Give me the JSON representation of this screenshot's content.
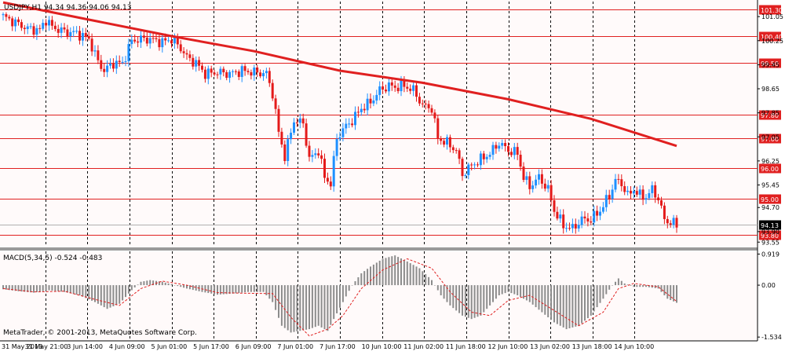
{
  "window": {
    "header": "USDJPY,H1  94.34 94.36 94.06 94.13",
    "copyright": "MetaTrader, © 2001-2013, MetaQuotes Software Corp.",
    "macd_header": "MACD(5,34,5) -0.524 -0.483"
  },
  "colors": {
    "background": "#fffafa",
    "up_candle": "#1e90ff",
    "down_candle": "#e41a1a",
    "sma": "#e02020",
    "level_line": "#e02020",
    "grid": "#000000",
    "macd_bar": "#8c8c8c",
    "signal": "#e02020"
  },
  "chart_data": [
    {
      "type": "candlestick",
      "symbol": "USDJPY",
      "timeframe": "H1",
      "title": "USDJPY,H1  94.34 94.36 94.06 94.13",
      "ylim": [
        93.4,
        101.55
      ],
      "price_ticks": [
        "101.05",
        "100.25",
        "99.45",
        "98.65",
        "97.85",
        "97.05",
        "96.25",
        "95.45",
        "94.70",
        "93.90",
        "93.55"
      ],
      "horizontal_levels": [
        {
          "value": 101.3,
          "label": "101.30"
        },
        {
          "value": 100.4,
          "label": "100.40"
        },
        {
          "value": 99.5,
          "label": "99.50"
        },
        {
          "value": 97.8,
          "label": "97.80"
        },
        {
          "value": 97.0,
          "label": "97.00"
        },
        {
          "value": 96.0,
          "label": "96.00"
        },
        {
          "value": 95.0,
          "label": "95.00"
        },
        {
          "value": 93.8,
          "label": "93.80"
        }
      ],
      "current_price": "94.13",
      "close_path": [
        [
          0,
          101.05
        ],
        [
          4,
          100.85
        ],
        [
          8,
          100.65
        ],
        [
          12,
          100.6
        ],
        [
          14,
          100.95
        ],
        [
          16,
          100.7
        ],
        [
          20,
          100.55
        ],
        [
          24,
          100.5
        ],
        [
          28,
          100.3
        ],
        [
          31,
          99.55
        ],
        [
          33,
          99.25
        ],
        [
          36,
          99.5
        ],
        [
          39,
          99.5
        ],
        [
          42,
          100.25
        ],
        [
          45,
          100.3
        ],
        [
          48,
          100.3
        ],
        [
          52,
          100.2
        ],
        [
          55,
          100.3
        ],
        [
          58,
          100.0
        ],
        [
          60,
          99.7
        ],
        [
          63,
          99.5
        ],
        [
          66,
          99.15
        ],
        [
          70,
          99.2
        ],
        [
          74,
          99.15
        ],
        [
          78,
          99.25
        ],
        [
          82,
          99.2
        ],
        [
          86,
          99.15
        ],
        [
          88,
          98.5
        ],
        [
          90,
          97.2
        ],
        [
          92,
          96.4
        ],
        [
          95,
          97.6
        ],
        [
          98,
          97.5
        ],
        [
          100,
          96.3
        ],
        [
          103,
          96.6
        ],
        [
          105,
          95.7
        ],
        [
          107,
          95.5
        ],
        [
          109,
          97.0
        ],
        [
          111,
          97.3
        ],
        [
          114,
          97.6
        ],
        [
          117,
          98.0
        ],
        [
          120,
          98.2
        ],
        [
          123,
          98.6
        ],
        [
          126,
          98.75
        ],
        [
          128,
          98.7
        ],
        [
          131,
          98.75
        ],
        [
          134,
          98.6
        ],
        [
          137,
          98.1
        ],
        [
          140,
          98.0
        ],
        [
          142,
          97.0
        ],
        [
          145,
          96.85
        ],
        [
          148,
          96.6
        ],
        [
          150,
          95.8
        ],
        [
          153,
          96.1
        ],
        [
          156,
          96.3
        ],
        [
          159,
          96.5
        ],
        [
          162,
          96.85
        ],
        [
          165,
          96.6
        ],
        [
          168,
          96.5
        ],
        [
          170,
          95.7
        ],
        [
          172,
          95.4
        ],
        [
          175,
          95.7
        ],
        [
          178,
          95.3
        ],
        [
          180,
          94.6
        ],
        [
          183,
          94.1
        ],
        [
          186,
          94.0
        ],
        [
          189,
          94.3
        ],
        [
          192,
          94.3
        ],
        [
          195,
          94.6
        ],
        [
          198,
          95.1
        ],
        [
          200,
          95.6
        ],
        [
          202,
          95.5
        ],
        [
          204,
          95.1
        ],
        [
          206,
          95.3
        ],
        [
          208,
          95.1
        ],
        [
          210,
          95.05
        ],
        [
          212,
          95.3
        ],
        [
          214,
          95.0
        ],
        [
          216,
          94.3
        ],
        [
          218,
          94.2
        ],
        [
          220,
          94.13
        ]
      ],
      "sma_line": [
        [
          0,
          101.52
        ],
        [
          28,
          100.95
        ],
        [
          55,
          100.4
        ],
        [
          82,
          99.9
        ],
        [
          110,
          99.25
        ],
        [
          137,
          98.85
        ],
        [
          165,
          98.3
        ],
        [
          192,
          97.65
        ],
        [
          220,
          96.75
        ]
      ],
      "x_tick_labels": [
        "31 May 2013",
        "31 May 21:00",
        "3 Jun 14:00",
        "4 Jun 09:00",
        "5 Jun 01:00",
        "5 Jun 17:00",
        "6 Jun 09:00",
        "7 Jun 01:00",
        "7 Jun 17:00",
        "10 Jun 10:00",
        "11 Jun 02:00",
        "11 Jun 18:00",
        "12 Jun 10:00",
        "13 Jun 02:00",
        "13 Jun 18:00",
        "14 Jun 10:00"
      ]
    },
    {
      "type": "bar",
      "name": "MACD(5,34,5)",
      "title": "MACD(5,34,5) -0.524 -0.483",
      "ylim": [
        -1.6,
        1.0
      ],
      "y_ticks": [
        "0.919",
        "0.00",
        "-1.534"
      ],
      "macd_path": [
        [
          0,
          -0.12
        ],
        [
          5,
          -0.18
        ],
        [
          10,
          -0.22
        ],
        [
          15,
          -0.15
        ],
        [
          20,
          -0.2
        ],
        [
          25,
          -0.3
        ],
        [
          30,
          -0.5
        ],
        [
          34,
          -0.7
        ],
        [
          38,
          -0.55
        ],
        [
          42,
          -0.15
        ],
        [
          45,
          0.1
        ],
        [
          48,
          0.15
        ],
        [
          52,
          0.1
        ],
        [
          56,
          0.0
        ],
        [
          60,
          -0.1
        ],
        [
          65,
          -0.2
        ],
        [
          70,
          -0.28
        ],
        [
          75,
          -0.25
        ],
        [
          80,
          -0.2
        ],
        [
          85,
          -0.2
        ],
        [
          88,
          -0.5
        ],
        [
          91,
          -1.2
        ],
        [
          94,
          -1.4
        ],
        [
          97,
          -1.35
        ],
        [
          100,
          -1.3
        ],
        [
          103,
          -1.2
        ],
        [
          106,
          -1.35
        ],
        [
          108,
          -1.0
        ],
        [
          111,
          -0.5
        ],
        [
          114,
          0.0
        ],
        [
          117,
          0.35
        ],
        [
          120,
          0.55
        ],
        [
          124,
          0.78
        ],
        [
          128,
          0.88
        ],
        [
          132,
          0.7
        ],
        [
          136,
          0.5
        ],
        [
          140,
          0.15
        ],
        [
          143,
          -0.3
        ],
        [
          146,
          -0.6
        ],
        [
          150,
          -0.9
        ],
        [
          153,
          -1.0
        ],
        [
          156,
          -0.9
        ],
        [
          159,
          -0.6
        ],
        [
          162,
          -0.3
        ],
        [
          165,
          -0.2
        ],
        [
          168,
          -0.3
        ],
        [
          172,
          -0.5
        ],
        [
          176,
          -0.8
        ],
        [
          180,
          -1.1
        ],
        [
          184,
          -1.3
        ],
        [
          188,
          -1.2
        ],
        [
          192,
          -0.9
        ],
        [
          196,
          -0.4
        ],
        [
          199,
          0.0
        ],
        [
          201,
          0.2
        ],
        [
          203,
          0.05
        ],
        [
          206,
          -0.05
        ],
        [
          210,
          -0.05
        ],
        [
          214,
          -0.1
        ],
        [
          217,
          -0.4
        ],
        [
          220,
          -0.52
        ]
      ],
      "signal_path": [
        [
          0,
          -0.1
        ],
        [
          10,
          -0.2
        ],
        [
          20,
          -0.18
        ],
        [
          30,
          -0.42
        ],
        [
          38,
          -0.6
        ],
        [
          45,
          -0.1
        ],
        [
          52,
          0.12
        ],
        [
          60,
          0.0
        ],
        [
          70,
          -0.22
        ],
        [
          80,
          -0.24
        ],
        [
          88,
          -0.25
        ],
        [
          94,
          -0.95
        ],
        [
          100,
          -1.5
        ],
        [
          106,
          -1.3
        ],
        [
          111,
          -0.9
        ],
        [
          117,
          -0.1
        ],
        [
          124,
          0.45
        ],
        [
          132,
          0.78
        ],
        [
          140,
          0.5
        ],
        [
          146,
          -0.2
        ],
        [
          153,
          -0.8
        ],
        [
          159,
          -0.9
        ],
        [
          165,
          -0.45
        ],
        [
          172,
          -0.3
        ],
        [
          180,
          -0.75
        ],
        [
          188,
          -1.2
        ],
        [
          196,
          -0.8
        ],
        [
          201,
          -0.1
        ],
        [
          206,
          0.05
        ],
        [
          214,
          -0.05
        ],
        [
          220,
          -0.48
        ]
      ]
    }
  ]
}
